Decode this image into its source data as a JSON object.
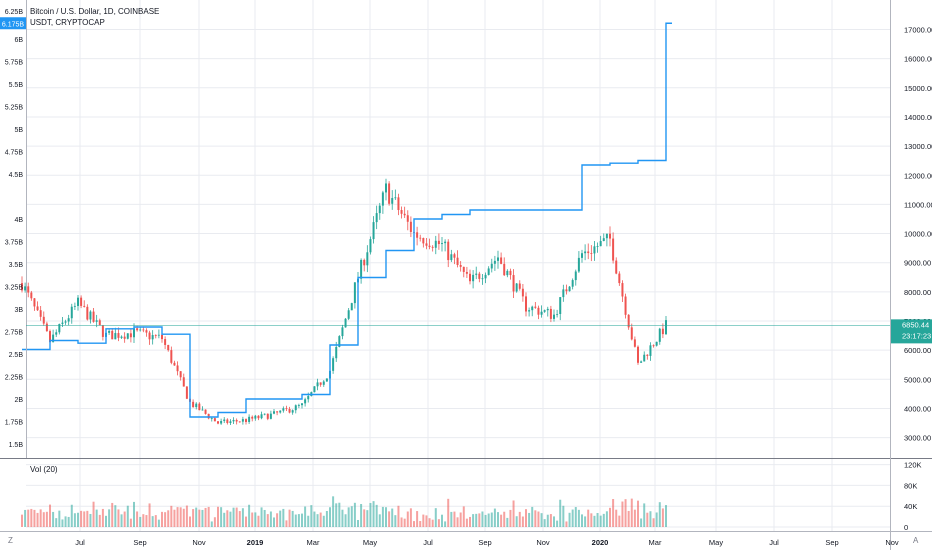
{
  "header": {
    "symbol_line": "Bitcoin / U.S. Dollar, 1D, COINBASE",
    "overlay_line": "USDT, CRYPTOCAP"
  },
  "volume_pane": {
    "label": "Vol (20)"
  },
  "corner": {
    "left": "Z",
    "right": "A"
  },
  "colors": {
    "up": "#26a69a",
    "down": "#ef5350",
    "usdt_line": "#2196f3",
    "price_line": "#26a69a",
    "left_tag": "#2196f3",
    "grid": "#e9ebf0"
  },
  "chart_data": {
    "type": "candlestick",
    "title": "Bitcoin / U.S. Dollar, 1D, COINBASE",
    "x_ticks": [
      "Jul",
      "Sep",
      "Nov",
      "2019",
      "Mar",
      "May",
      "Jul",
      "Sep",
      "Nov",
      "2020",
      "Mar",
      "May",
      "Jul",
      "Sep",
      "Nov"
    ],
    "right_axis": {
      "ticks": [
        "17000.00",
        "16000.00",
        "15000.00",
        "14000.00",
        "13000.00",
        "12000.00",
        "11000.00",
        "10000.00",
        "9000.00",
        "8000.00",
        "7000.00",
        "6000.00",
        "5000.00",
        "4000.00",
        "3000.00"
      ],
      "range": [
        2500,
        17500
      ]
    },
    "left_axis": {
      "ticks": [
        "6B",
        "5.75B",
        "5.5B",
        "5.25B",
        "5B",
        "4.75B",
        "4.5B",
        "4B",
        "3.75B",
        "3.5B",
        "3.25B",
        "3B",
        "2.75B",
        "2.5B",
        "2.25B",
        "2B",
        "1.75B",
        "1.5B"
      ],
      "top_partial": "6.25B",
      "current_tag": "6.175B"
    },
    "price_tag": {
      "value": "6850.44",
      "countdown": "23:17:23"
    },
    "volume_axis": {
      "ticks": [
        "120K",
        "80K",
        "40K",
        "0"
      ]
    },
    "btc_close_anchors": [
      {
        "month": "2018-05",
        "close": 8300
      },
      {
        "month": "2018-06",
        "close": 6300
      },
      {
        "month": "2018-07",
        "close": 7600
      },
      {
        "month": "2018-08",
        "close": 6500
      },
      {
        "month": "2018-09",
        "close": 6600
      },
      {
        "month": "2018-10",
        "close": 6400
      },
      {
        "month": "2018-11",
        "close": 4200
      },
      {
        "month": "2018-12",
        "close": 3500
      },
      {
        "month": "2019-01",
        "close": 3600
      },
      {
        "month": "2019-02",
        "close": 3800
      },
      {
        "month": "2019-03",
        "close": 4100
      },
      {
        "month": "2019-04",
        "close": 5300
      },
      {
        "month": "2019-05",
        "close": 8500
      },
      {
        "month": "2019-06",
        "close": 11500
      },
      {
        "month": "2019-07",
        "close": 10000
      },
      {
        "month": "2019-08",
        "close": 9600
      },
      {
        "month": "2019-09",
        "close": 8300
      },
      {
        "month": "2019-10",
        "close": 9200
      },
      {
        "month": "2019-11",
        "close": 7500
      },
      {
        "month": "2019-12",
        "close": 7200
      },
      {
        "month": "2020-01",
        "close": 9300
      },
      {
        "month": "2020-02",
        "close": 9800
      },
      {
        "month": "2020-03",
        "close": 5500
      },
      {
        "month": "2020-04",
        "close": 6850
      }
    ],
    "usdt_market_cap_billions_anchors": [
      {
        "month": "2018-05",
        "cap": 2.55
      },
      {
        "month": "2018-06",
        "cap": 2.65
      },
      {
        "month": "2018-07",
        "cap": 2.62
      },
      {
        "month": "2018-08",
        "cap": 2.78
      },
      {
        "month": "2018-09",
        "cap": 2.8
      },
      {
        "month": "2018-10",
        "cap": 2.72
      },
      {
        "month": "2018-11",
        "cap": 1.8
      },
      {
        "month": "2018-12",
        "cap": 1.85
      },
      {
        "month": "2019-01",
        "cap": 2.0
      },
      {
        "month": "2019-02",
        "cap": 2.0
      },
      {
        "month": "2019-03",
        "cap": 2.05
      },
      {
        "month": "2019-04",
        "cap": 2.6
      },
      {
        "month": "2019-05",
        "cap": 3.35
      },
      {
        "month": "2019-06",
        "cap": 3.65
      },
      {
        "month": "2019-07",
        "cap": 4.0
      },
      {
        "month": "2019-08",
        "cap": 4.05
      },
      {
        "month": "2019-09",
        "cap": 4.1
      },
      {
        "month": "2019-10",
        "cap": 4.1
      },
      {
        "month": "2019-11",
        "cap": 4.1
      },
      {
        "month": "2019-12",
        "cap": 4.1
      },
      {
        "month": "2020-01",
        "cap": 4.6
      },
      {
        "month": "2020-02",
        "cap": 4.62
      },
      {
        "month": "2020-03",
        "cap": 4.65
      },
      {
        "month": "2020-04",
        "cap": 6.175
      }
    ]
  }
}
